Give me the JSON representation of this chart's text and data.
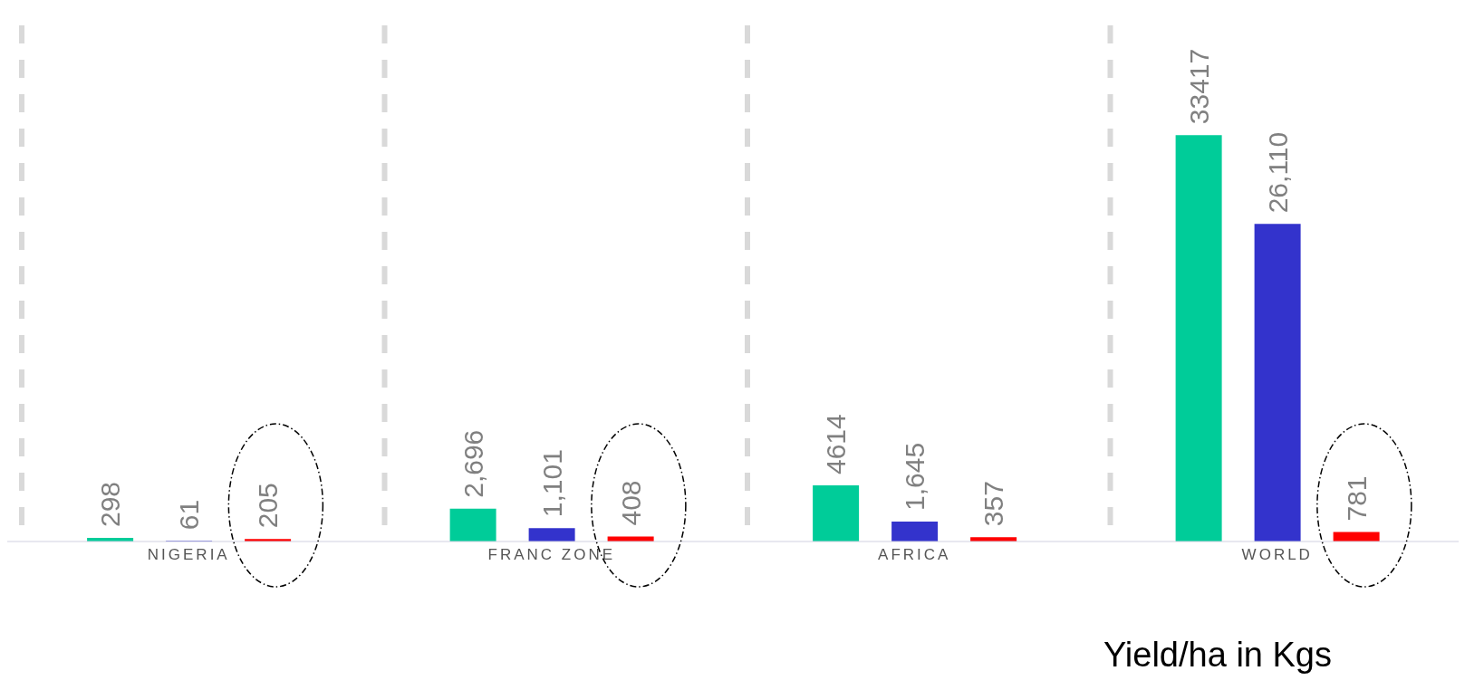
{
  "chart_data": {
    "type": "bar",
    "xlabel": "Yield/ha in Kgs",
    "categories": [
      "NIGERIA",
      "FRANC ZONE",
      "AFRICA",
      "WORLD"
    ],
    "series": [
      {
        "color": "#00cc99",
        "values": [
          298,
          2696,
          4614,
          33417
        ],
        "value_labels": [
          "298",
          "2,696",
          "4614",
          "33417"
        ]
      },
      {
        "color": "#3333cc",
        "values": [
          61,
          1101,
          1645,
          26110
        ],
        "value_labels": [
          "61",
          "1,101",
          "1,645",
          "26,110"
        ]
      },
      {
        "color": "#ff0000",
        "values": [
          205,
          408,
          357,
          781
        ],
        "value_labels": [
          "205",
          "408",
          "357",
          "781"
        ]
      }
    ],
    "grid": "x"
  }
}
